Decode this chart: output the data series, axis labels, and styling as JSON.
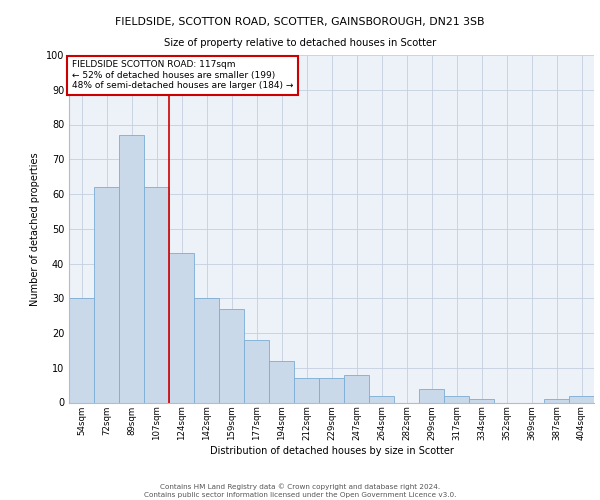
{
  "title1": "FIELDSIDE, SCOTTON ROAD, SCOTTER, GAINSBOROUGH, DN21 3SB",
  "title2": "Size of property relative to detached houses in Scotter",
  "xlabel": "Distribution of detached houses by size in Scotter",
  "ylabel": "Number of detached properties",
  "categories": [
    "54sqm",
    "72sqm",
    "89sqm",
    "107sqm",
    "124sqm",
    "142sqm",
    "159sqm",
    "177sqm",
    "194sqm",
    "212sqm",
    "229sqm",
    "247sqm",
    "264sqm",
    "282sqm",
    "299sqm",
    "317sqm",
    "334sqm",
    "352sqm",
    "369sqm",
    "387sqm",
    "404sqm"
  ],
  "values": [
    30,
    62,
    77,
    62,
    43,
    30,
    27,
    18,
    12,
    7,
    7,
    8,
    2,
    0,
    4,
    2,
    1,
    0,
    0,
    1,
    2
  ],
  "bar_color": "#c9d9ea",
  "bar_edge_color": "#7aadd4",
  "vline_x": 3.5,
  "vline_color": "#cc0000",
  "annotation_text": "FIELDSIDE SCOTTON ROAD: 117sqm\n← 52% of detached houses are smaller (199)\n48% of semi-detached houses are larger (184) →",
  "annotation_box_color": "#ffffff",
  "annotation_box_edge_color": "#cc0000",
  "ylim": [
    0,
    100
  ],
  "yticks": [
    0,
    10,
    20,
    30,
    40,
    50,
    60,
    70,
    80,
    90,
    100
  ],
  "grid_color": "#c5cfe0",
  "background_color": "#edf2f8",
  "footer": "Contains HM Land Registry data © Crown copyright and database right 2024.\nContains public sector information licensed under the Open Government Licence v3.0."
}
